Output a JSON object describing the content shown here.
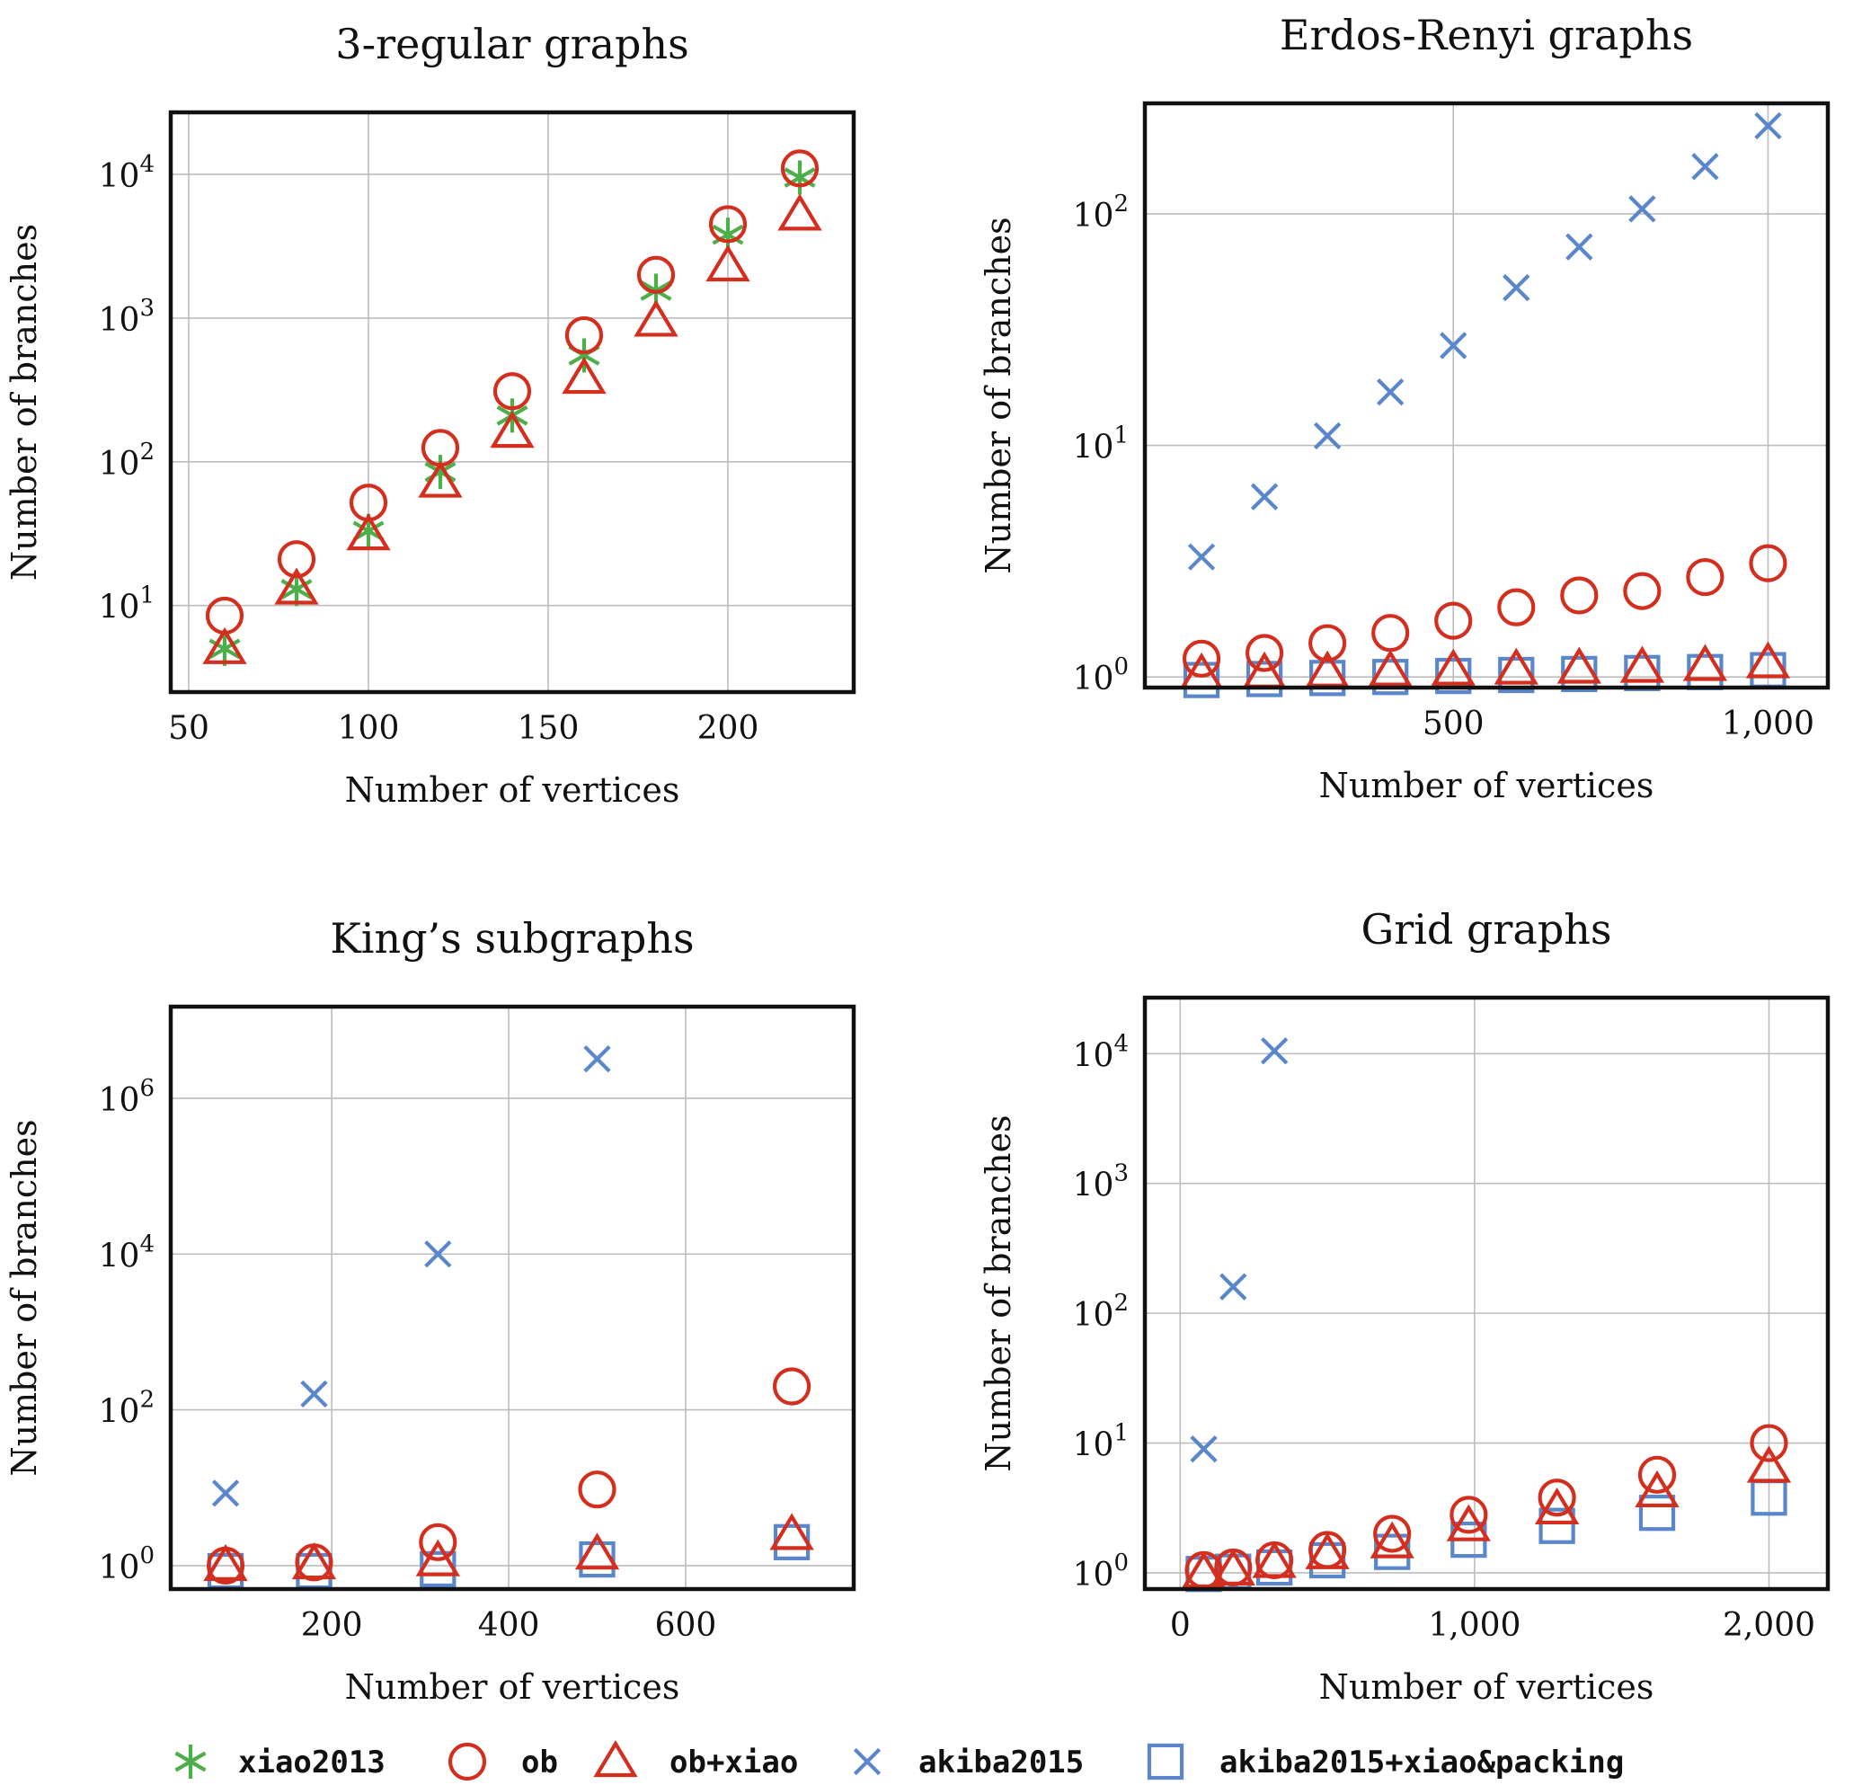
{
  "colors": {
    "xiao2013": "#4daf4a",
    "ob": "#d42e1e",
    "ob+xiao": "#d42e1e",
    "akiba2015": "#5a87cc",
    "akiba2015+xiao&packing": "#5a87cc",
    "grid": "#bdbdbd",
    "frame": "#111111"
  },
  "legend": [
    {
      "label": "xiao2013",
      "marker": "asterisk-icon"
    },
    {
      "label": "ob",
      "marker": "circle-icon"
    },
    {
      "label": "ob+xiao",
      "marker": "triangle-icon"
    },
    {
      "label": "akiba2015",
      "marker": "cross-icon"
    },
    {
      "label": "akiba2015+xiao&packing",
      "marker": "square-icon"
    }
  ],
  "chart_data": [
    {
      "type": "scatter",
      "title": "3-regular graphs",
      "xlabel": "Number of vertices",
      "ylabel": "Number of branches",
      "xlim": [
        45,
        235
      ],
      "ylog": true,
      "ylim": [
        2.5,
        27000
      ],
      "xticks": [
        {
          "v": 50,
          "label": "50"
        },
        {
          "v": 100,
          "label": "100"
        },
        {
          "v": 150,
          "label": "150"
        },
        {
          "v": 200,
          "label": "200"
        }
      ],
      "yticks": [
        {
          "v": 10,
          "base": "10",
          "exp": "1"
        },
        {
          "v": 100,
          "base": "10",
          "exp": "2"
        },
        {
          "v": 1000,
          "base": "10",
          "exp": "3"
        },
        {
          "v": 10000,
          "base": "10",
          "exp": "4"
        }
      ],
      "grid": true,
      "series": [
        {
          "name": "xiao2013",
          "x": [
            60,
            80,
            100,
            120,
            140,
            160,
            180,
            200,
            220
          ],
          "y": [
            5,
            13,
            33,
            85,
            210,
            550,
            1550,
            3800,
            9500
          ]
        },
        {
          "name": "ob",
          "x": [
            60,
            80,
            100,
            120,
            140,
            160,
            180,
            200,
            220
          ],
          "y": [
            8.5,
            21,
            52,
            125,
            310,
            760,
            2000,
            4500,
            11000
          ]
        },
        {
          "name": "ob+xiao",
          "x": [
            60,
            80,
            100,
            120,
            140,
            160,
            180,
            200,
            220
          ],
          "y": [
            5,
            13,
            31,
            72,
            160,
            380,
            950,
            2300,
            5200
          ]
        }
      ]
    },
    {
      "type": "scatter",
      "title": "Erdos-Renyi graphs",
      "xlabel": "Number of vertices",
      "ylabel": "Number of branches",
      "xlim": [
        10,
        1095
      ],
      "ylog": true,
      "ylim": [
        0.9,
        300
      ],
      "xticks": [
        {
          "v": 500,
          "label": "500"
        },
        {
          "v": 1000,
          "label": "1,000"
        }
      ],
      "yticks": [
        {
          "v": 1,
          "base": "10",
          "exp": "0"
        },
        {
          "v": 10,
          "base": "10",
          "exp": "1"
        },
        {
          "v": 100,
          "base": "10",
          "exp": "2"
        }
      ],
      "grid": true,
      "series": [
        {
          "name": "ob",
          "x": [
            100,
            200,
            300,
            400,
            500,
            600,
            700,
            800,
            900,
            1000
          ],
          "y": [
            1.2,
            1.27,
            1.4,
            1.55,
            1.75,
            2.0,
            2.25,
            2.35,
            2.7,
            3.1
          ]
        },
        {
          "name": "ob+xiao",
          "x": [
            100,
            200,
            300,
            400,
            500,
            600,
            700,
            800,
            900,
            1000
          ],
          "y": [
            1.03,
            1.04,
            1.05,
            1.06,
            1.07,
            1.08,
            1.09,
            1.1,
            1.12,
            1.15
          ]
        },
        {
          "name": "akiba2015",
          "x": [
            100,
            200,
            300,
            400,
            500,
            600,
            700,
            800,
            900,
            1000
          ],
          "y": [
            3.3,
            6,
            11,
            17,
            27,
            48,
            72,
            105,
            160,
            240
          ]
        },
        {
          "name": "akiba2015+xiao&packing",
          "x": [
            100,
            200,
            300,
            400,
            500,
            600,
            700,
            800,
            900,
            1000
          ],
          "y": [
            0.97,
            0.98,
            0.99,
            1.0,
            1.01,
            1.02,
            1.03,
            1.04,
            1.05,
            1.07
          ]
        }
      ]
    },
    {
      "type": "scatter",
      "title": "King’s subgraphs",
      "xlabel": "Number of vertices",
      "ylabel": "Number of branches",
      "xlim": [
        18,
        790
      ],
      "ylog": true,
      "ylim": [
        0.5,
        15000000
      ],
      "xticks": [
        {
          "v": 200,
          "label": "200"
        },
        {
          "v": 400,
          "label": "400"
        },
        {
          "v": 600,
          "label": "600"
        }
      ],
      "yticks": [
        {
          "v": 1,
          "base": "10",
          "exp": "0"
        },
        {
          "v": 100,
          "base": "10",
          "exp": "2"
        },
        {
          "v": 10000,
          "base": "10",
          "exp": "4"
        },
        {
          "v": 1000000,
          "base": "10",
          "exp": "6"
        }
      ],
      "grid": true,
      "series": [
        {
          "name": "ob",
          "x": [
            80,
            180,
            320,
            500,
            720
          ],
          "y": [
            1.0,
            1.1,
            2.0,
            9.5,
            200
          ]
        },
        {
          "name": "ob+xiao",
          "x": [
            80,
            180,
            320,
            500,
            720
          ],
          "y": [
            1.0,
            1.05,
            1.15,
            1.4,
            2.5
          ]
        },
        {
          "name": "akiba2015",
          "x": [
            80,
            180,
            320,
            500
          ],
          "y": [
            8.5,
            160,
            10000,
            3200000
          ]
        },
        {
          "name": "akiba2015+xiao&packing",
          "x": [
            80,
            180,
            320,
            500,
            720
          ],
          "y": [
            0.85,
            0.85,
            0.9,
            1.2,
            2.0
          ]
        }
      ]
    },
    {
      "type": "scatter",
      "title": "Grid graphs",
      "xlabel": "Number of vertices",
      "ylabel": "Number of branches",
      "xlim": [
        -120,
        2200
      ],
      "ylog": true,
      "ylim": [
        0.75,
        27000
      ],
      "xticks": [
        {
          "v": 0,
          "label": "0"
        },
        {
          "v": 1000,
          "label": "1,000"
        },
        {
          "v": 2000,
          "label": "2,000"
        }
      ],
      "yticks": [
        {
          "v": 1,
          "base": "10",
          "exp": "0"
        },
        {
          "v": 10,
          "base": "10",
          "exp": "1"
        },
        {
          "v": 100,
          "base": "10",
          "exp": "2"
        },
        {
          "v": 1000,
          "base": "10",
          "exp": "3"
        },
        {
          "v": 10000,
          "base": "10",
          "exp": "4"
        }
      ],
      "grid": true,
      "series": [
        {
          "name": "ob",
          "x": [
            80,
            180,
            320,
            500,
            720,
            980,
            1280,
            1620,
            2000
          ],
          "y": [
            1.05,
            1.1,
            1.25,
            1.5,
            2.0,
            2.8,
            3.8,
            5.7,
            10
          ]
        },
        {
          "name": "ob+xiao",
          "x": [
            80,
            180,
            320,
            500,
            720,
            980,
            1280,
            1620,
            2000
          ],
          "y": [
            1.0,
            1.05,
            1.2,
            1.4,
            1.7,
            2.3,
            3.1,
            4.2,
            6.5
          ]
        },
        {
          "name": "akiba2015",
          "x": [
            80,
            180,
            320
          ],
          "y": [
            9,
            160,
            10500
          ]
        },
        {
          "name": "akiba2015+xiao&packing",
          "x": [
            80,
            180,
            320,
            500,
            720,
            980,
            1280,
            1620,
            2000
          ],
          "y": [
            0.98,
            1.02,
            1.1,
            1.25,
            1.45,
            1.8,
            2.3,
            2.9,
            3.8
          ]
        }
      ]
    }
  ]
}
